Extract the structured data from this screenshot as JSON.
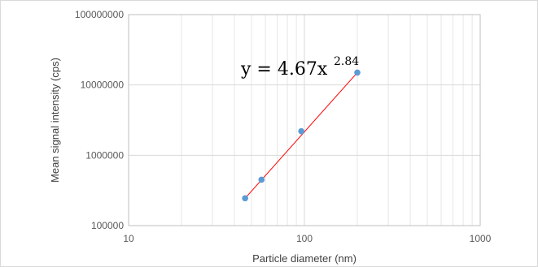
{
  "chart_data": {
    "type": "scatter",
    "title": "",
    "xlabel": "Particle diameter (nm)",
    "ylabel": "Mean signal intensity (cps)",
    "x_scale": "log",
    "y_scale": "log",
    "xlim": [
      10,
      1000
    ],
    "ylim": [
      100000,
      100000000
    ],
    "x_ticks": [
      "10",
      "100",
      "1000"
    ],
    "y_ticks": [
      "100000",
      "1000000",
      "10000000",
      "100000000"
    ],
    "grid": true,
    "legend": "none",
    "series": [
      {
        "x": [
          46,
          57,
          96,
          200
        ],
        "y": [
          245000,
          450000,
          2200000,
          15000000
        ],
        "color": "#5b9bd5"
      }
    ],
    "trendline": {
      "type": "power",
      "coefficient": 4.67,
      "exponent": 2.84,
      "x_range": [
        46,
        200
      ],
      "color": "#ff0000"
    },
    "annotation": {
      "equation_main": "y = 4.67x",
      "equation_exponent": "2.84"
    }
  }
}
